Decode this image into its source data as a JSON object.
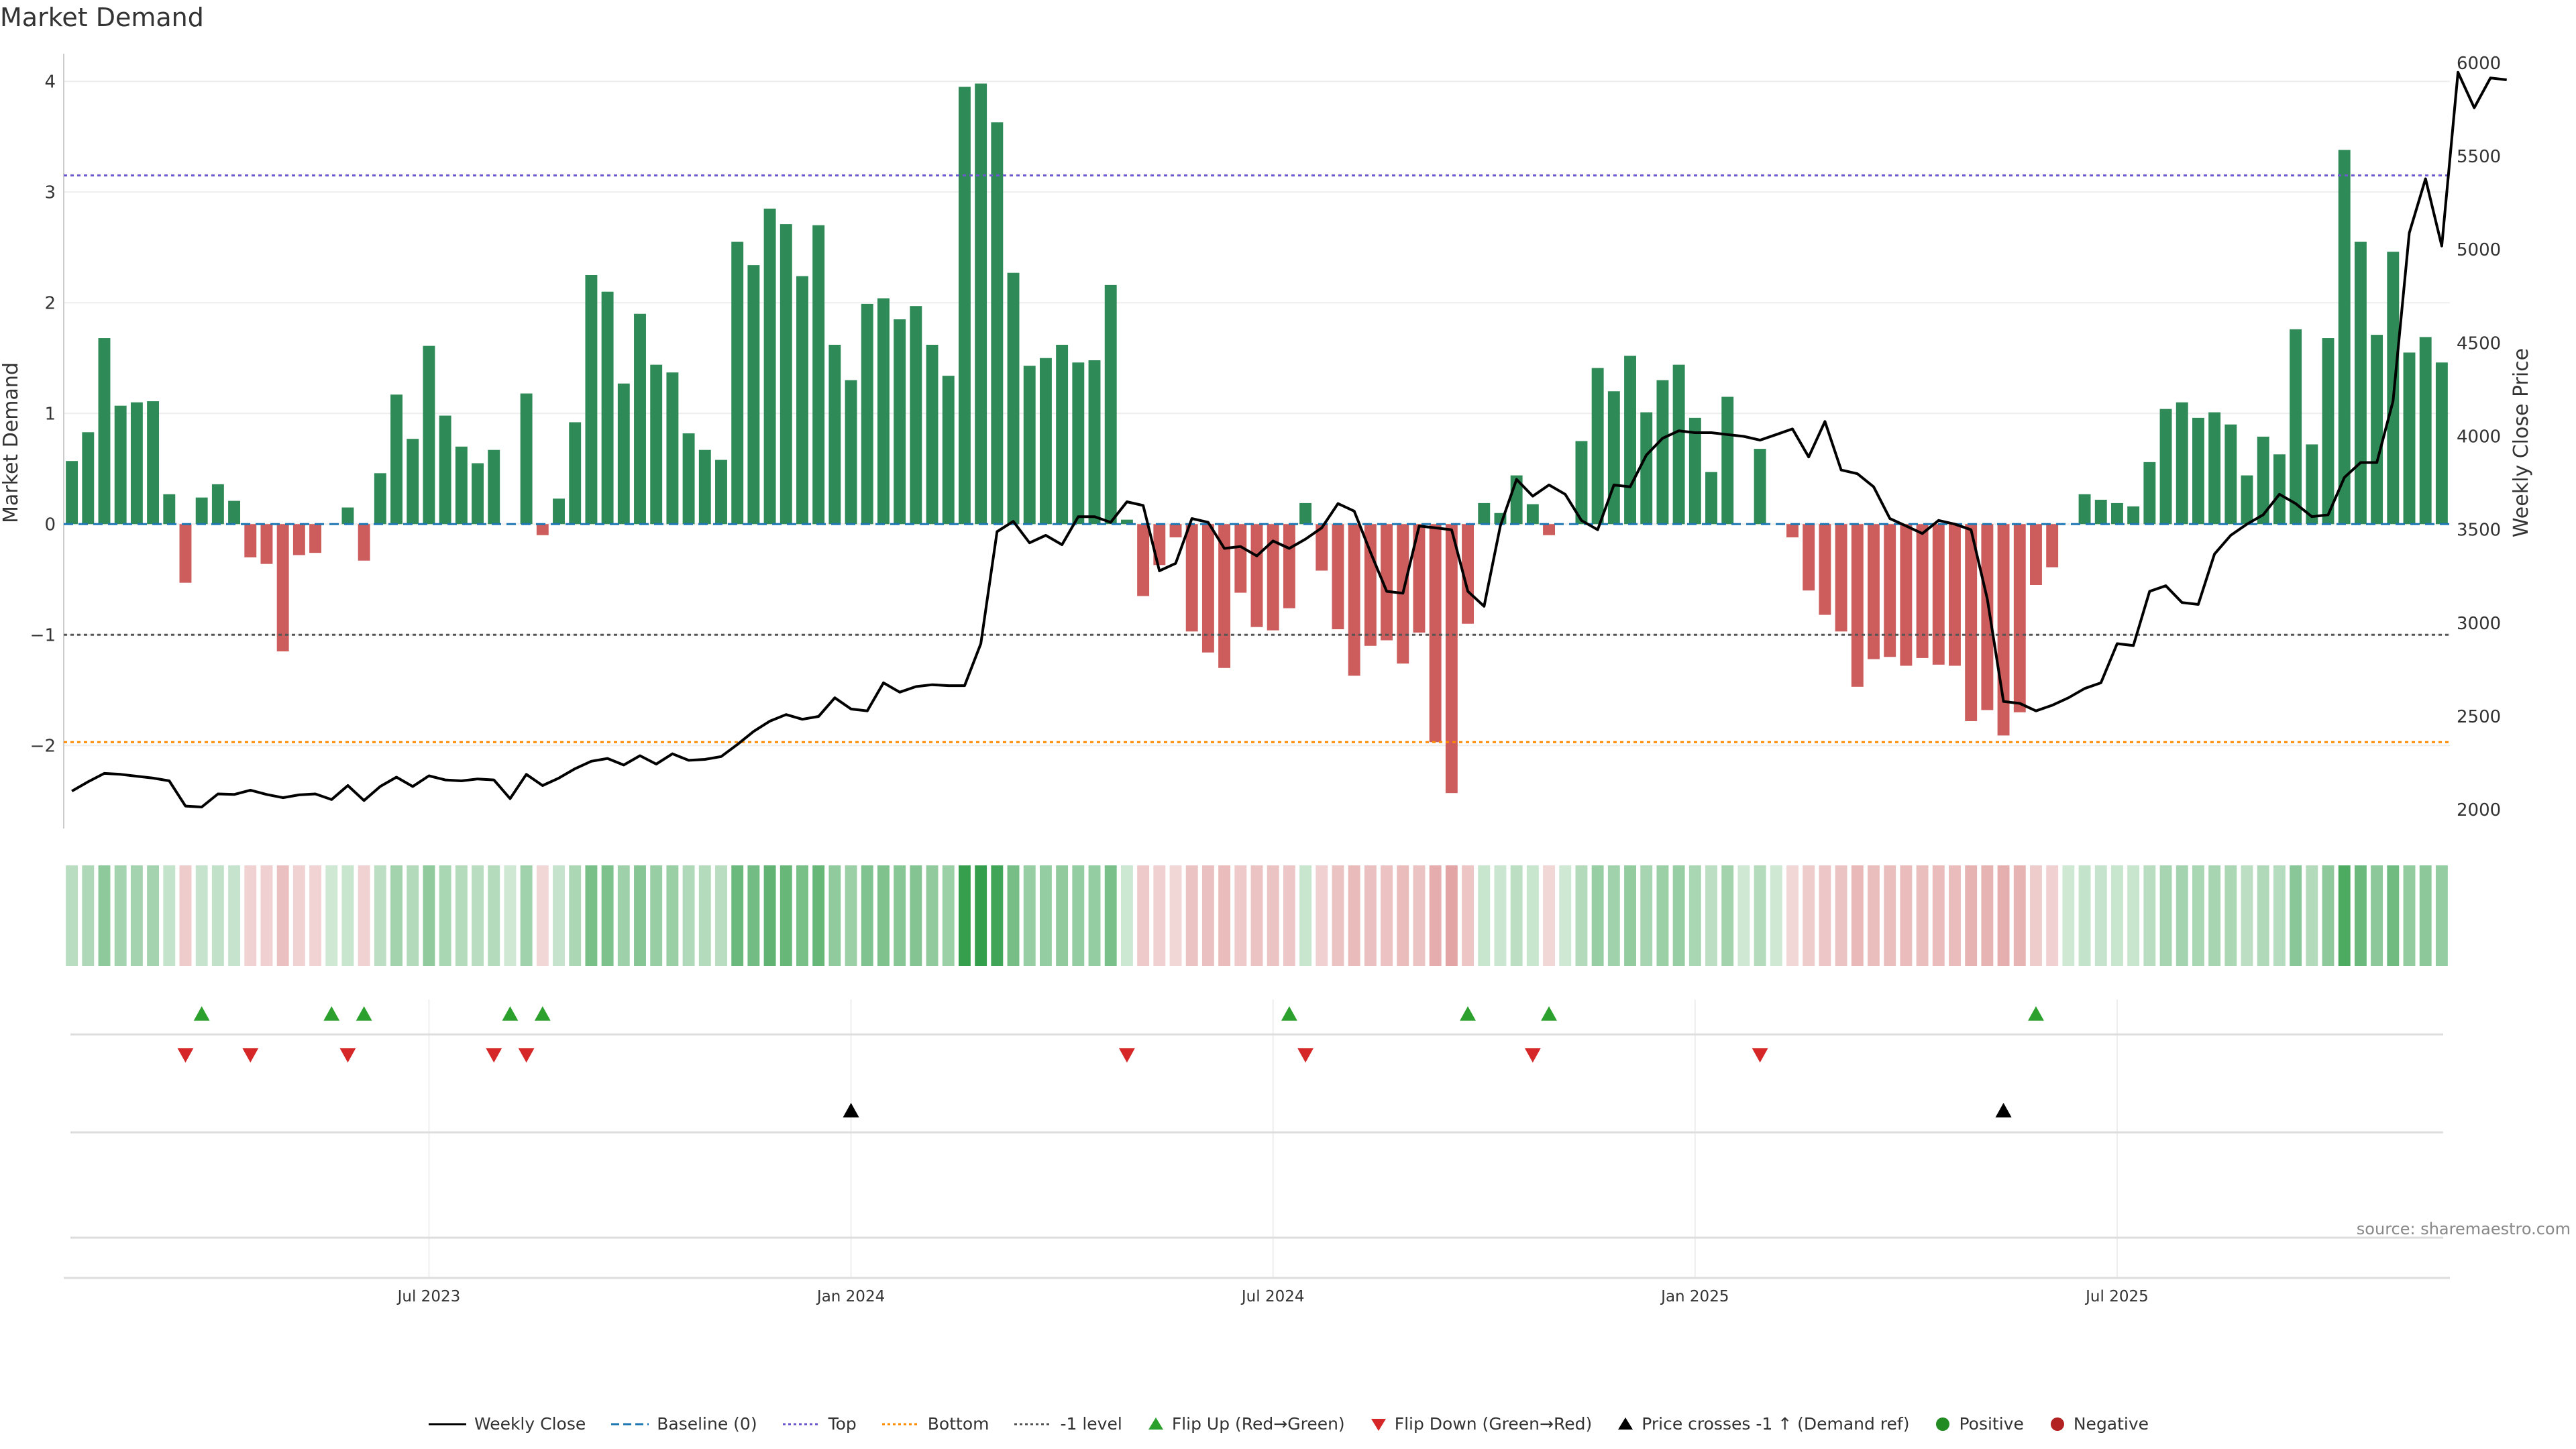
{
  "title": "Market Demand",
  "source": "source: sharemaestro.com",
  "colors": {
    "positive": "#2e8b57",
    "negative": "#cd5c5c",
    "price": "#000000",
    "baseline": "#1f77b4",
    "top": "#6a5acd",
    "bottom": "#ff8c00",
    "minus1": "#555555",
    "flip_up": "#2ca02c",
    "flip_down": "#d62728",
    "cross": "#000000"
  },
  "chart_data": {
    "type": "bar",
    "ylabel_left": "Market Demand",
    "ylabel_right": "Weekly Close Price",
    "ylim_left": [
      -2.75,
      4.25
    ],
    "ylim_right": [
      1900,
      6050
    ],
    "yticks_left": [
      4,
      3,
      2,
      1,
      0,
      -1,
      -2
    ],
    "yticks_left_labels": [
      "4",
      "3",
      "2",
      "1",
      "0",
      "−1",
      "−2"
    ],
    "yticks_right": [
      6000,
      5500,
      5000,
      4500,
      4000,
      3500,
      3000,
      2500,
      2000
    ],
    "x_tick_labels": [
      {
        "label": "Jul 2023",
        "week": 22
      },
      {
        "label": "Jan 2024",
        "week": 48
      },
      {
        "label": "Jul 2024",
        "week": 74
      },
      {
        "label": "Jan 2025",
        "week": 100
      },
      {
        "label": "Jul 2025",
        "week": 126
      }
    ],
    "levels": {
      "baseline": 0,
      "top": 3.15,
      "bottom": -1.97,
      "minus1": -1.0
    },
    "demand": [
      0.57,
      0.83,
      1.68,
      1.07,
      1.1,
      1.11,
      0.27,
      -0.53,
      0.24,
      0.36,
      0.21,
      -0.3,
      -0.36,
      -1.15,
      -0.28,
      -0.26,
      0.0,
      0.15,
      -0.33,
      0.46,
      1.17,
      0.77,
      1.61,
      0.98,
      0.7,
      0.55,
      0.67,
      0.0,
      1.18,
      -0.1,
      0.23,
      0.92,
      2.25,
      2.1,
      1.27,
      1.9,
      1.44,
      1.37,
      0.82,
      0.67,
      0.58,
      2.55,
      2.34,
      2.85,
      2.71,
      2.24,
      2.7,
      1.62,
      1.3,
      1.99,
      2.04,
      1.85,
      1.97,
      1.62,
      1.34,
      3.95,
      3.98,
      3.63,
      2.27,
      1.43,
      1.5,
      1.62,
      1.46,
      1.48,
      2.16,
      0.04,
      -0.65,
      -0.37,
      -0.12,
      -0.97,
      -1.16,
      -1.3,
      -0.62,
      -0.93,
      -0.96,
      -0.76,
      0.19,
      -0.42,
      -0.95,
      -1.37,
      -1.1,
      -1.05,
      -1.26,
      -0.98,
      -1.97,
      -2.43,
      -0.9,
      0.19,
      0.1,
      0.44,
      0.18,
      -0.1,
      0.0,
      0.75,
      1.41,
      1.2,
      1.52,
      1.01,
      1.3,
      1.44,
      0.96,
      0.47,
      1.15,
      0.0,
      0.68,
      0.0,
      -0.12,
      -0.6,
      -0.82,
      -0.97,
      -1.47,
      -1.22,
      -1.2,
      -1.28,
      -1.21,
      -1.27,
      -1.28,
      -1.78,
      -1.68,
      -1.91,
      -1.7,
      -0.55,
      -0.39,
      0.0,
      0.27,
      0.22,
      0.19,
      0.16,
      0.56,
      1.04,
      1.1,
      0.96,
      1.01,
      0.9,
      0.44,
      0.79,
      0.63,
      1.76,
      0.72,
      1.68,
      3.38,
      2.55,
      1.71,
      2.46,
      1.55,
      1.69,
      1.46
    ],
    "price": [
      2100,
      2150,
      2195,
      2190,
      2180,
      2170,
      2155,
      2020,
      2015,
      2085,
      2082,
      2105,
      2082,
      2065,
      2080,
      2085,
      2055,
      2130,
      2050,
      2125,
      2175,
      2125,
      2182,
      2160,
      2155,
      2165,
      2160,
      2060,
      2190,
      2130,
      2170,
      2220,
      2260,
      2275,
      2240,
      2290,
      2245,
      2300,
      2265,
      2270,
      2285,
      2350,
      2420,
      2475,
      2510,
      2485,
      2500,
      2600,
      2540,
      2530,
      2680,
      2630,
      2660,
      2670,
      2665,
      2665,
      2890,
      3490,
      3545,
      3430,
      3470,
      3420,
      3570,
      3570,
      3540,
      3650,
      3630,
      3280,
      3320,
      3560,
      3540,
      3400,
      3410,
      3360,
      3440,
      3400,
      3450,
      3510,
      3640,
      3600,
      3380,
      3170,
      3160,
      3520,
      3510,
      3500,
      3170,
      3090,
      3520,
      3770,
      3680,
      3740,
      3690,
      3550,
      3500,
      3740,
      3730,
      3900,
      3990,
      4030,
      4020,
      4020,
      4010,
      4000,
      3980,
      4010,
      4040,
      3890,
      4080,
      3820,
      3800,
      3730,
      3560,
      3520,
      3480,
      3550,
      3530,
      3500,
      3130,
      2580,
      2570,
      2530,
      2560,
      2600,
      2650,
      2680,
      2890,
      2880,
      3170,
      3200,
      3110,
      3100,
      3370,
      3470,
      3530,
      3580,
      3690,
      3640,
      3570,
      3580,
      3780,
      3860,
      3860,
      4190,
      5090,
      5380,
      5020,
      5950,
      5760,
      5920,
      5910
    ],
    "flip_up_weeks": [
      8,
      16,
      18,
      27,
      29,
      75,
      86,
      91,
      121
    ],
    "flip_down_weeks": [
      7,
      11,
      17,
      26,
      28,
      65,
      76,
      90,
      104
    ],
    "price_cross_weeks": [
      48,
      119
    ]
  },
  "legend": [
    {
      "label": "Weekly Close",
      "kind": "line",
      "color": "#000000"
    },
    {
      "label": "Baseline (0)",
      "kind": "dash",
      "color": "#1f77b4"
    },
    {
      "label": "Top",
      "kind": "dot",
      "color": "#6a5acd"
    },
    {
      "label": "Bottom",
      "kind": "dot",
      "color": "#ff8c00"
    },
    {
      "label": "-1 level",
      "kind": "dot",
      "color": "#555555"
    },
    {
      "label": "Flip Up (Red→Green)",
      "kind": "tri-up",
      "color": "#2ca02c"
    },
    {
      "label": "Flip Down (Green→Red)",
      "kind": "tri-down",
      "color": "#d62728"
    },
    {
      "label": "Price crosses -1 ↑ (Demand ref)",
      "kind": "tri-up",
      "color": "#000000"
    },
    {
      "label": "Positive",
      "kind": "circle",
      "color": "#228b22"
    },
    {
      "label": "Negative",
      "kind": "circle",
      "color": "#b22222"
    }
  ]
}
